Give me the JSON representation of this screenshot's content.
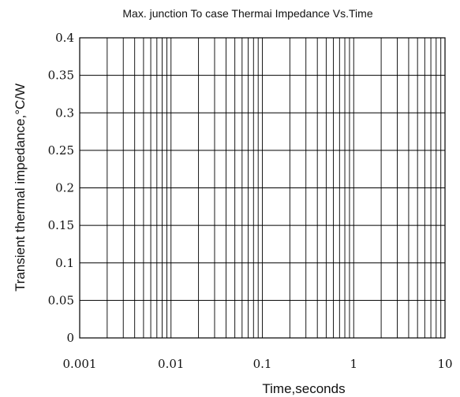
{
  "chart_data": {
    "type": "line",
    "title": "Max. junction To case Thermai Impedance Vs.Time",
    "xlabel": "Time,seconds",
    "ylabel": "Transient thermal impedance,°C/W",
    "x_scale": "log",
    "xlim": [
      0.001,
      10
    ],
    "ylim": [
      0,
      0.4
    ],
    "grid": true,
    "x_ticks": [
      {
        "value": 0.001,
        "label": "0.001"
      },
      {
        "value": 0.01,
        "label": "0.01"
      },
      {
        "value": 0.1,
        "label": "0.1"
      },
      {
        "value": 1,
        "label": "1"
      },
      {
        "value": 10,
        "label": "10"
      }
    ],
    "y_ticks": [
      {
        "value": 0,
        "label": "0"
      },
      {
        "value": 0.05,
        "label": "0.05"
      },
      {
        "value": 0.1,
        "label": "0.1"
      },
      {
        "value": 0.15,
        "label": "0.15"
      },
      {
        "value": 0.2,
        "label": "0.2"
      },
      {
        "value": 0.25,
        "label": "0.25"
      },
      {
        "value": 0.3,
        "label": "0.3"
      },
      {
        "value": 0.35,
        "label": "0.35"
      },
      {
        "value": 0.4,
        "label": "0.4"
      }
    ],
    "series": []
  }
}
